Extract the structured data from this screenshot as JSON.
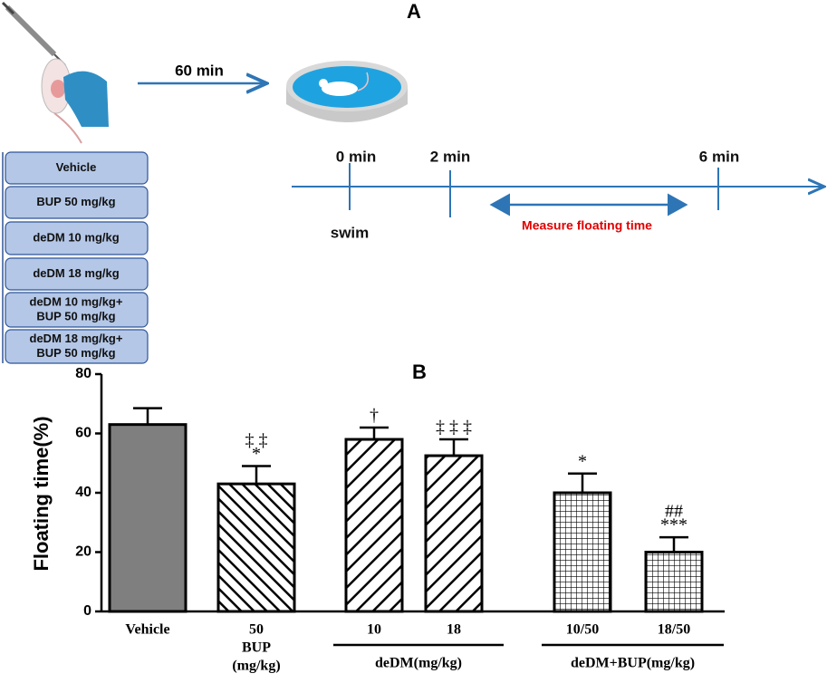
{
  "panel_a": {
    "label": "A",
    "delay": "60 min",
    "groups": [
      [
        "Vehicle"
      ],
      [
        "BUP 50 mg/kg"
      ],
      [
        "deDM 10 mg/kg"
      ],
      [
        "deDM 18 mg/kg"
      ],
      [
        "deDM 10 mg/kg+",
        "BUP 50 mg/kg"
      ],
      [
        "deDM 18 mg/kg+",
        "BUP 50 mg/kg"
      ]
    ],
    "timeline": {
      "times": [
        "0 min",
        "2 min",
        "6 min"
      ],
      "start": "swim",
      "measure": "Measure floating time"
    }
  },
  "chart_data": {
    "type": "bar",
    "title": "B",
    "ylabel": "Floating time(%)",
    "categories": [
      "Vehicle",
      "50",
      "10",
      "18",
      "10/50",
      "18/50"
    ],
    "values": [
      63,
      43,
      58,
      52.5,
      40,
      20
    ],
    "errors": [
      5.5,
      6,
      4,
      5.5,
      6.5,
      5
    ],
    "annotations": [
      [],
      [
        "‡ ‡",
        "*"
      ],
      [
        "†"
      ],
      [
        "‡ ‡ ‡"
      ],
      [
        "*"
      ],
      [
        "##",
        "***"
      ]
    ],
    "patterns": [
      "solid",
      "hatch-back",
      "hatch-forward",
      "hatch-forward",
      "grid",
      "grid"
    ],
    "color": "#7f7f7f",
    "groups": [
      {
        "label": [
          "BUP",
          "(mg/kg)"
        ],
        "members": [
          1
        ]
      },
      {
        "label": [
          "deDM(mg/kg)"
        ],
        "members": [
          2,
          3
        ]
      },
      {
        "label": [
          "deDM+BUP(mg/kg)"
        ],
        "members": [
          4,
          5
        ]
      }
    ],
    "ylim": [
      0,
      80
    ],
    "yticks": [
      0,
      20,
      40,
      60,
      80
    ]
  }
}
